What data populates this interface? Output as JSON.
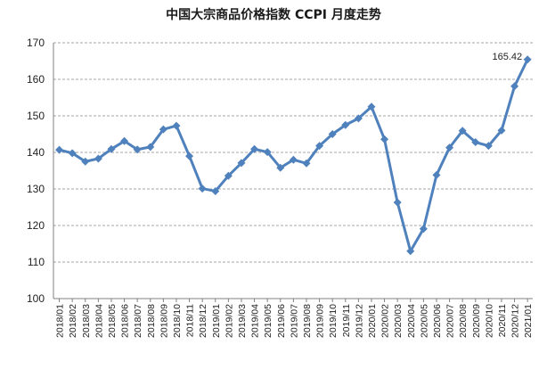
{
  "chart_data": {
    "type": "line",
    "title": "中国大宗商品价格指数 CCPI 月度走势",
    "xlabel": "",
    "ylabel": "",
    "ylim": [
      100,
      170
    ],
    "yticks": [
      100,
      110,
      120,
      130,
      140,
      150,
      160,
      170
    ],
    "grid": "horizontal-dashed",
    "legend": "none",
    "line_color": "#4F81BD",
    "grid_color": "#A6A6A6",
    "categories": [
      "2018/01",
      "2018/02",
      "2018/03",
      "2018/04",
      "2018/05",
      "2018/06",
      "2018/07",
      "2018/08",
      "2018/09",
      "2018/10",
      "2018/11",
      "2018/12",
      "2019/01",
      "2019/02",
      "2019/03",
      "2019/04",
      "2019/05",
      "2019/06",
      "2019/07",
      "2019/08",
      "2019/09",
      "2019/10",
      "2019/11",
      "2019/12",
      "2020/01",
      "2020/02",
      "2020/03",
      "2020/04",
      "2020/05",
      "2020/06",
      "2020/07",
      "2020/08",
      "2020/09",
      "2020/10",
      "2020/11",
      "2020/12",
      "2021/01"
    ],
    "series": [
      {
        "values": [
          140.7,
          139.8,
          137.5,
          138.3,
          140.9,
          143.1,
          140.8,
          141.5,
          146.3,
          147.3,
          139.0,
          130.1,
          129.4,
          133.6,
          137.1,
          140.9,
          140.1,
          135.8,
          138.0,
          137.0,
          141.8,
          145.0,
          147.5,
          149.3,
          152.5,
          143.6,
          126.3,
          113.0,
          119.1,
          133.8,
          141.3,
          145.9,
          142.8,
          141.8,
          146.0,
          158.1,
          165.42
        ]
      }
    ],
    "annotations": [
      {
        "index": 36,
        "text": "165.42"
      }
    ]
  }
}
